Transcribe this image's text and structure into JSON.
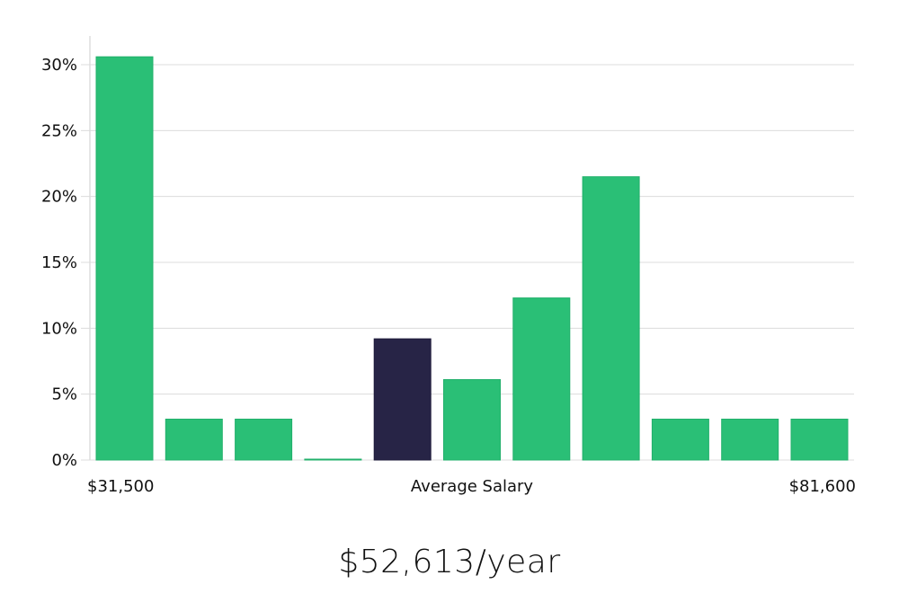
{
  "chart_data": {
    "type": "bar",
    "title": "",
    "xlabel": "Average Salary",
    "ylabel": "",
    "x_min_label": "$31,500",
    "x_max_label": "$81,600",
    "ylim": [
      0,
      32
    ],
    "yticks": [
      0,
      5,
      10,
      15,
      20,
      25,
      30
    ],
    "ytick_suffix": "%",
    "grid": true,
    "values": [
      30.6,
      3.1,
      3.1,
      0.0,
      9.2,
      6.1,
      12.3,
      21.5,
      3.1,
      3.1,
      3.1
    ],
    "highlight_index": 4,
    "colors": {
      "bar": "#2abf76",
      "bar_stroke": "#22b06b",
      "highlight": "#272446",
      "grid": "#dcdcdc",
      "axis": "#cccccc"
    }
  },
  "summary": {
    "salary_text": "$52,613/year"
  }
}
